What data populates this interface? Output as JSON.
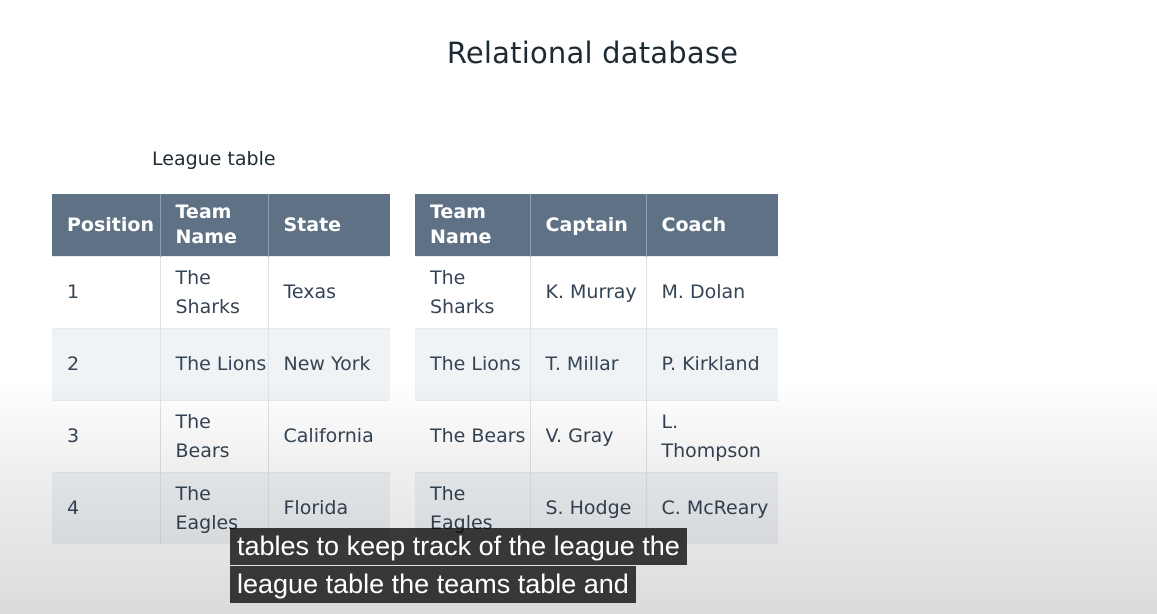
{
  "slide": {
    "title": "Relational database",
    "league_caption": "League table"
  },
  "league_table": {
    "headers": [
      "Position",
      "Team Name",
      "State"
    ],
    "rows": [
      [
        "1",
        "The Sharks",
        "Texas"
      ],
      [
        "2",
        "The Lions",
        "New York"
      ],
      [
        "3",
        "The Bears",
        "California"
      ],
      [
        "4",
        "The Eagles",
        "Florida"
      ]
    ]
  },
  "teams_table": {
    "headers": [
      "Team Name",
      "Captain",
      "Coach"
    ],
    "rows": [
      [
        "The Sharks",
        "K. Murray",
        "M. Dolan"
      ],
      [
        "The Lions",
        "T. Millar",
        "P. Kirkland"
      ],
      [
        "The Bears",
        "V. Gray",
        "L. Thompson"
      ],
      [
        "The Eagles",
        "S. Hodge",
        "C. McReary"
      ]
    ]
  },
  "captions": {
    "line1": "tables to keep track of the league the",
    "line2": "league table the teams table and"
  },
  "colors": {
    "header_bg": "#5f7184",
    "header_text": "#ffffff",
    "row_alt_bg": "#f0f3f6",
    "caption_bg": "#080808"
  }
}
